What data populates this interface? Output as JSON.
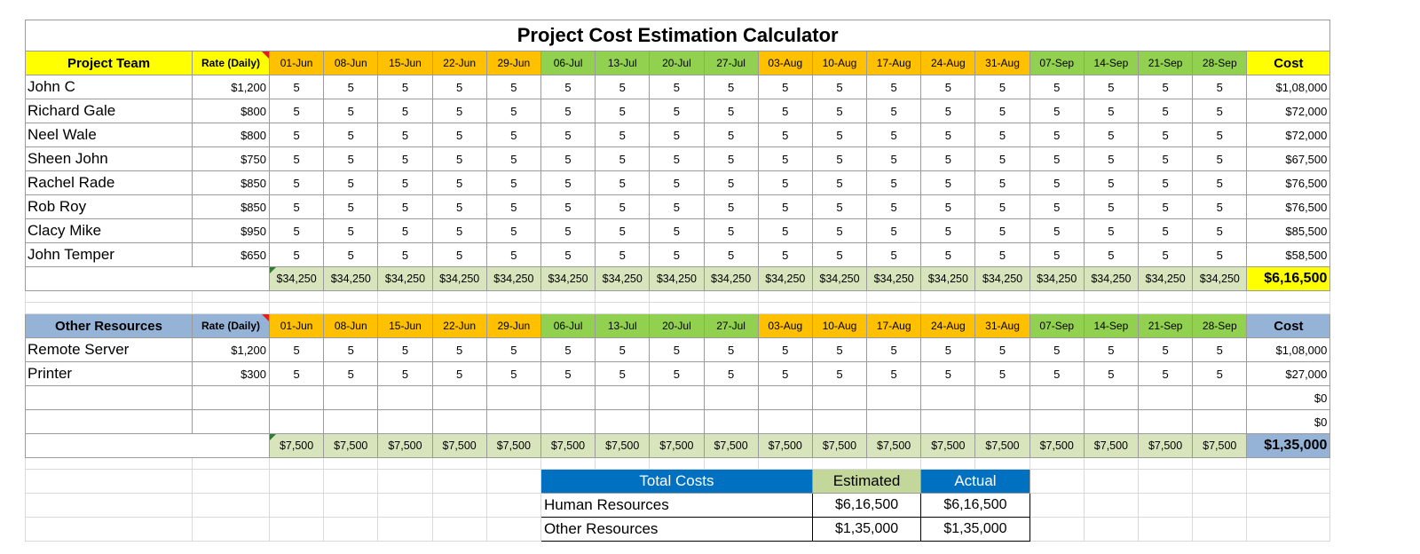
{
  "title": "Project Cost Estimation Calculator",
  "weeks": [
    "01-Jun",
    "08-Jun",
    "15-Jun",
    "22-Jun",
    "29-Jun",
    "06-Jul",
    "13-Jul",
    "20-Jul",
    "27-Jul",
    "03-Aug",
    "10-Aug",
    "17-Aug",
    "24-Aug",
    "31-Aug",
    "07-Sep",
    "14-Sep",
    "21-Sep",
    "28-Sep"
  ],
  "week_colors": [
    "orange",
    "orange",
    "orange",
    "orange",
    "orange",
    "green",
    "green",
    "green",
    "green",
    "orange",
    "orange",
    "orange",
    "orange",
    "orange",
    "green",
    "green",
    "green",
    "green"
  ],
  "team": {
    "header": "Project Team",
    "rate_header": "Rate (Daily)",
    "cost_header": "Cost",
    "rows": [
      {
        "name": "John C",
        "rate": "$1,200",
        "days": "5",
        "cost": "$1,08,000"
      },
      {
        "name": "Richard Gale",
        "rate": "$800",
        "days": "5",
        "cost": "$72,000"
      },
      {
        "name": "Neel Wale",
        "rate": "$800",
        "days": "5",
        "cost": "$72,000"
      },
      {
        "name": "Sheen John",
        "rate": "$750",
        "days": "5",
        "cost": "$67,500"
      },
      {
        "name": "Rachel Rade",
        "rate": "$850",
        "days": "5",
        "cost": "$76,500"
      },
      {
        "name": "Rob Roy",
        "rate": "$850",
        "days": "5",
        "cost": "$76,500"
      },
      {
        "name": "Clacy Mike",
        "rate": "$950",
        "days": "5",
        "cost": "$85,500"
      },
      {
        "name": "John Temper",
        "rate": "$650",
        "days": "5",
        "cost": "$58,500"
      }
    ],
    "week_total": "$34,250",
    "grand_total": "$6,16,500"
  },
  "resources": {
    "header": "Other Resources",
    "rate_header": "Rate (Daily)",
    "cost_header": "Cost",
    "rows": [
      {
        "name": "Remote Server",
        "rate": "$1,200",
        "days": "5",
        "cost": "$1,08,000"
      },
      {
        "name": "Printer",
        "rate": "$300",
        "days": "5",
        "cost": "$27,000"
      },
      {
        "name": "",
        "rate": "",
        "days": "",
        "cost": "$0"
      },
      {
        "name": "",
        "rate": "",
        "days": "",
        "cost": "$0"
      }
    ],
    "week_total": "$7,500",
    "grand_total": "$1,35,000"
  },
  "summary": {
    "header": "Total Costs",
    "estimated_header": "Estimated",
    "actual_header": "Actual",
    "rows": [
      {
        "label": "Human Resources",
        "estimated": "$6,16,500",
        "actual": "$6,16,500"
      },
      {
        "label": "Other Resources",
        "estimated": "$1,35,000",
        "actual": "$1,35,000"
      }
    ]
  },
  "colors": {
    "orange": "#ffc000",
    "green": "#92d050",
    "yellow": "#ffff00",
    "blue_header": "#95b3d7",
    "total_fill": "#d8e4bc",
    "summary_blue": "#0070c0",
    "summary_green": "#c4d79b"
  }
}
